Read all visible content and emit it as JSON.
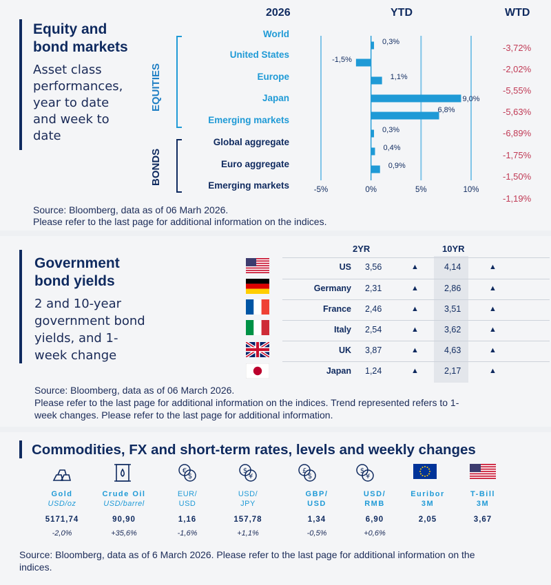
{
  "equity": {
    "title_line1": "Equity and",
    "title_line2": "bond markets",
    "subtitle_lines": [
      "Asset class",
      "performances,",
      "year to date",
      "and week to",
      "date"
    ],
    "col_year": "2026",
    "col_ytd": "YTD",
    "col_wtd": "WTD",
    "label_equities": "EQUITIES",
    "label_bonds": "BONDS",
    "source_line1": "Source: Bloomberg, data as of 06 Marh 2026.",
    "source_line2": "Please refer to the last page for additional information on the indices.",
    "wtd_values": [
      "-3,72%",
      "-2,02%",
      "-5,55%",
      "-5,63%",
      "-6,89%",
      "-1,75%",
      "-1,50%",
      "-1,19%"
    ]
  },
  "chart_data": {
    "type": "bar",
    "orientation": "horizontal",
    "categories": [
      "World",
      "United States",
      "Europe",
      "Japan",
      "Emerging  markets",
      "Global aggregate",
      "Euro aggregate",
      "Emerging  markets"
    ],
    "values": [
      0.3,
      -1.5,
      1.1,
      9.0,
      6.8,
      0.3,
      0.4,
      0.9
    ],
    "value_labels": [
      "0,3%",
      "-1,5%",
      "1,1%",
      "9,0%",
      "6,8%",
      "0,3%",
      "0,4%",
      "0,9%"
    ],
    "tick_labels": [
      "-5%",
      "0%",
      "5%",
      "10%"
    ],
    "ticks": [
      -5,
      0,
      5,
      10
    ],
    "xlim": [
      -5,
      10
    ],
    "bar_color": "#1f9ad6",
    "grid_color": "#7fc4e8"
  },
  "gov": {
    "title_line1": "Government",
    "title_line2": "bond yields",
    "subtitle_lines": [
      "2 and 10-year",
      "government bond",
      "yields, and 1-",
      "week change"
    ],
    "col_2yr": "2YR",
    "col_10yr": "10YR",
    "rows": [
      {
        "country": "US",
        "y2": "3,56",
        "t2": "▲",
        "y10": "4,14",
        "t10": "▲"
      },
      {
        "country": "Germany",
        "y2": "2,31",
        "t2": "▲",
        "y10": "2,86",
        "t10": "▲"
      },
      {
        "country": "France",
        "y2": "2,46",
        "t2": "▲",
        "y10": "3,51",
        "t10": "▲"
      },
      {
        "country": "Italy",
        "y2": "2,54",
        "t2": "▲",
        "y10": "3,62",
        "t10": "▲"
      },
      {
        "country": "UK",
        "y2": "3,87",
        "t2": "▲",
        "y10": "4,63",
        "t10": "▲"
      },
      {
        "country": "Japan",
        "y2": "1,24",
        "t2": "▲",
        "y10": "2,17",
        "t10": "▲"
      }
    ],
    "source_line1": "Source: Bloomberg, data as of 06  March 2026.",
    "source_line2": "Please refer to the last page for additional information on the indices. Trend represented refers to 1-",
    "source_line3": "week changes. Please refer to the last page for additional information."
  },
  "commod": {
    "title": "Commodities, FX and short-term rates, levels and weekly changes",
    "items": [
      {
        "icon": "gold-bars-icon",
        "name1": "Gold",
        "name2": "USD/oz",
        "level": "5171,74",
        "change": "-2,0%"
      },
      {
        "icon": "oil-barrel-icon",
        "name1": "Crude Oil",
        "name2": "USD/barrel",
        "level": "90,90",
        "change": "+35,6%"
      },
      {
        "icon": "euro-dollar-icon",
        "name1": "EUR/",
        "name2": "USD",
        "level": "1,16",
        "change": "-1,6%"
      },
      {
        "icon": "dollar-yen-icon",
        "name1": "USD/",
        "name2": "JPY",
        "level": "157,78",
        "change": "+1,1%"
      },
      {
        "icon": "pound-dollar-icon",
        "name1": "GBP/",
        "name2": "USD",
        "level": "1,34",
        "change": "-0,5%"
      },
      {
        "icon": "dollar-yuan-icon",
        "name1": "USD/",
        "name2": "RMB",
        "level": "6,90",
        "change": "+0,6%"
      },
      {
        "icon": "eu-flag-icon",
        "name1": "Euribor",
        "name2": "3M",
        "level": "2,05",
        "change": ""
      },
      {
        "icon": "us-flag-icon",
        "name1": "T-Bill",
        "name2": "3M",
        "level": "3,67",
        "change": ""
      }
    ],
    "source_line1": "Source: Bloomberg, data as of 6 March 2026. Please refer to the last page for additional information on the",
    "source_line2": "indices."
  }
}
